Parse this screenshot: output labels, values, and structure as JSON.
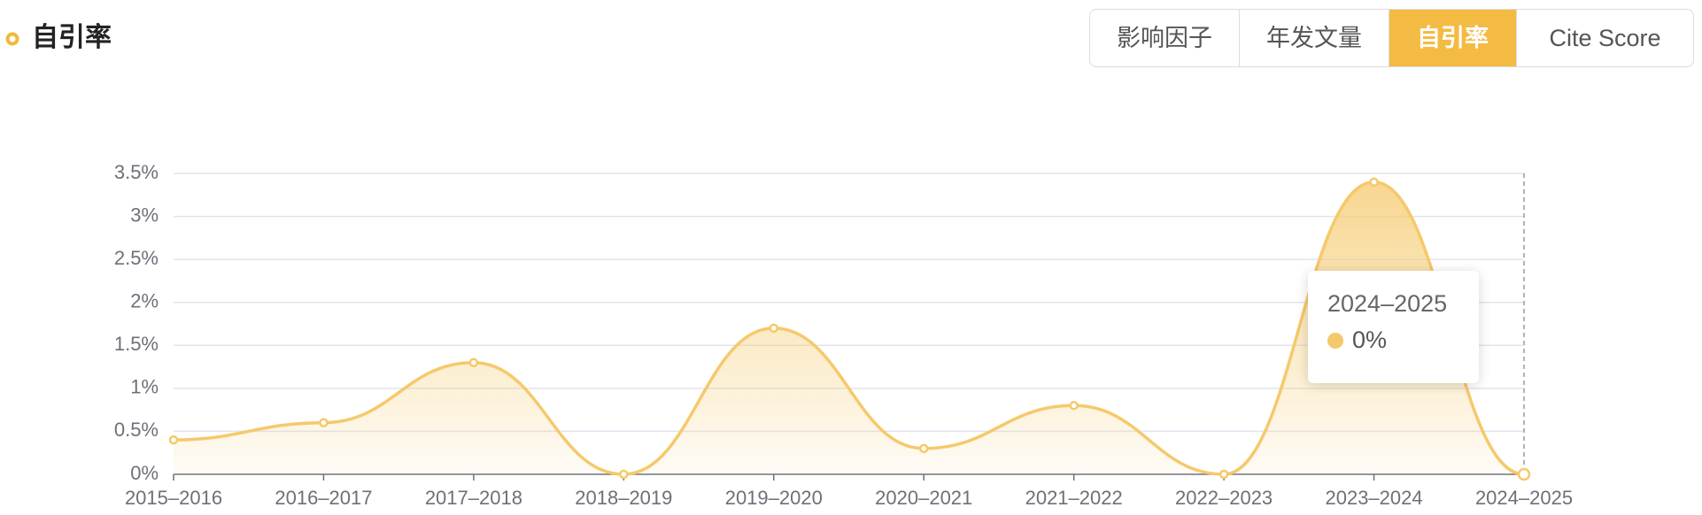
{
  "header": {
    "title": "自引率"
  },
  "tabs": {
    "items": [
      "影响因子",
      "年发文量",
      "自引率",
      "Cite Score"
    ],
    "active": 2
  },
  "tooltip": {
    "category": "2024–2025",
    "value": "0%"
  },
  "chart_data": {
    "type": "area",
    "color": "#f5c96b",
    "categories": [
      "2015–2016",
      "2016–2017",
      "2017–2018",
      "2018–2019",
      "2019–2020",
      "2020–2021",
      "2021–2022",
      "2022–2023",
      "2023–2024",
      "2024–2025"
    ],
    "values": [
      0.4,
      0.6,
      1.3,
      0,
      1.7,
      0.3,
      0.8,
      0,
      3.4,
      0
    ],
    "ylim": [
      0,
      3.5
    ],
    "yticks": [
      {
        "value": 0,
        "label": "0%"
      },
      {
        "value": 0.5,
        "label": "0.5%"
      },
      {
        "value": 1,
        "label": "1%"
      },
      {
        "value": 1.5,
        "label": "1.5%"
      },
      {
        "value": 2,
        "label": "2%"
      },
      {
        "value": 2.5,
        "label": "2.5%"
      },
      {
        "value": 3,
        "label": "3%"
      },
      {
        "value": 3.5,
        "label": "3.5%"
      }
    ],
    "grid": true
  }
}
